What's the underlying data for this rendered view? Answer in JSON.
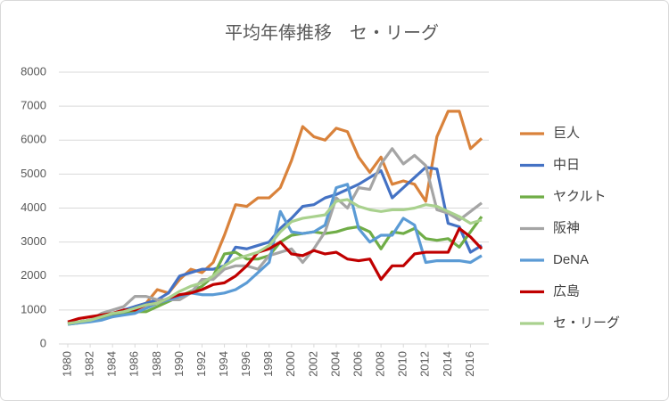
{
  "chart_data": {
    "type": "line",
    "title": "平均年俸推移　セ・リーグ",
    "x": [
      1980,
      1981,
      1982,
      1983,
      1984,
      1985,
      1986,
      1987,
      1988,
      1989,
      1990,
      1991,
      1992,
      1993,
      1994,
      1995,
      1996,
      1997,
      1998,
      1999,
      2000,
      2001,
      2002,
      2003,
      2004,
      2005,
      2006,
      2007,
      2008,
      2009,
      2010,
      2011,
      2012,
      2013,
      2014,
      2015,
      2016,
      2017
    ],
    "xlim": [
      1980,
      2017
    ],
    "xticks": [
      1980,
      1982,
      1984,
      1986,
      1988,
      1990,
      1992,
      1994,
      1996,
      1998,
      2000,
      2002,
      2004,
      2006,
      2008,
      2010,
      2012,
      2014,
      2016
    ],
    "ylim": [
      0,
      8000
    ],
    "yticks": [
      0,
      1000,
      2000,
      3000,
      4000,
      5000,
      6000,
      7000,
      8000
    ],
    "grid": true,
    "legend": "right",
    "series": [
      {
        "name": "巨人",
        "color": "#d9823b",
        "values": [
          600,
          650,
          700,
          750,
          800,
          900,
          1100,
          1200,
          1600,
          1500,
          1900,
          2200,
          2100,
          2400,
          3200,
          4100,
          4050,
          4300,
          4300,
          4600,
          5400,
          6400,
          6100,
          6000,
          6350,
          6250,
          5500,
          5050,
          5500,
          4700,
          4800,
          4700,
          4200,
          6100,
          6850,
          6850,
          5750,
          6050
        ]
      },
      {
        "name": "中日",
        "color": "#4472c4",
        "values": [
          600,
          650,
          700,
          800,
          900,
          1000,
          1100,
          1200,
          1300,
          1500,
          2000,
          2100,
          2200,
          2200,
          2300,
          2850,
          2800,
          2900,
          3000,
          3400,
          3700,
          4050,
          4100,
          4300,
          4400,
          4550,
          4700,
          4900,
          5100,
          4300,
          4600,
          4900,
          5200,
          5150,
          3550,
          3450,
          2700,
          2900
        ]
      },
      {
        "name": "ヤクルト",
        "color": "#70ad47",
        "values": [
          580,
          620,
          700,
          750,
          850,
          900,
          950,
          950,
          1100,
          1250,
          1400,
          1550,
          1700,
          2000,
          2650,
          2700,
          2500,
          2500,
          2600,
          3000,
          3200,
          3250,
          3300,
          3250,
          3300,
          3400,
          3450,
          3300,
          2800,
          3300,
          3250,
          3400,
          3100,
          3050,
          3100,
          2850,
          3300,
          3750
        ]
      },
      {
        "name": "阪神",
        "color": "#a5a5a5",
        "values": [
          600,
          650,
          700,
          900,
          1000,
          1100,
          1400,
          1400,
          1300,
          1300,
          1300,
          1500,
          1900,
          1900,
          2200,
          2300,
          2300,
          2200,
          2600,
          2700,
          2800,
          2400,
          2800,
          3300,
          4300,
          4000,
          4600,
          4550,
          5300,
          5750,
          5300,
          5550,
          5250,
          3950,
          3850,
          3650,
          3900,
          4150
        ]
      },
      {
        "name": "DeNA",
        "color": "#5b9bd5",
        "values": [
          580,
          620,
          650,
          700,
          800,
          850,
          900,
          1050,
          1200,
          1300,
          1400,
          1500,
          1450,
          1450,
          1500,
          1600,
          1800,
          2100,
          2400,
          3900,
          3300,
          3250,
          3300,
          3500,
          4600,
          4700,
          3400,
          3000,
          3200,
          3200,
          3700,
          3500,
          2400,
          2450,
          2450,
          2450,
          2400,
          2600
        ]
      },
      {
        "name": "広島",
        "color": "#c00000",
        "values": [
          650,
          750,
          800,
          850,
          900,
          1000,
          1000,
          1150,
          1200,
          1350,
          1450,
          1500,
          1600,
          1750,
          1800,
          2000,
          2300,
          2700,
          2800,
          3000,
          2650,
          2600,
          2750,
          2650,
          2700,
          2500,
          2450,
          2500,
          1900,
          2300,
          2300,
          2650,
          2700,
          2700,
          2700,
          3400,
          3150,
          2800
        ]
      },
      {
        "name": "セ・リーグ",
        "color": "#a9d18e",
        "values": [
          600,
          650,
          700,
          800,
          900,
          950,
          1050,
          1150,
          1200,
          1350,
          1550,
          1700,
          1800,
          2000,
          2300,
          2500,
          2600,
          2700,
          2900,
          3300,
          3600,
          3700,
          3750,
          3800,
          4200,
          4250,
          4050,
          3950,
          3900,
          3950,
          3950,
          4000,
          4100,
          4050,
          3900,
          3750,
          3550,
          3650
        ]
      }
    ]
  }
}
